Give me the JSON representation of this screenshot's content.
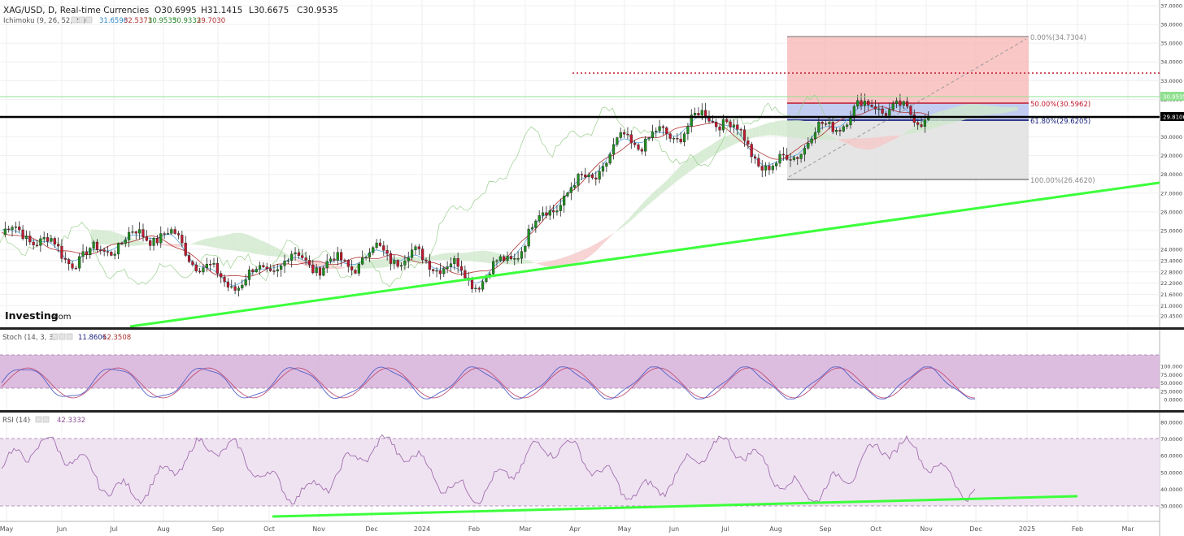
{
  "header": {
    "symbol_line": "XAG/USD, D, Real-time Currencies",
    "ohlc": {
      "open": "O30.6995",
      "high": "H31.1415",
      "low": "L30.6675",
      "close": "C30.9535"
    },
    "ichimoku_label": "Ichimoku (9, 26, 52, 26)",
    "ichimoku_values": [
      "31.6596",
      "32.5371",
      "30.9535",
      "30.9333",
      "29.7030"
    ],
    "ichimoku_value_colors": [
      "#2e86c1",
      "#b03030",
      "#2e8b2e",
      "#2e8b2e",
      "#b03030"
    ]
  },
  "logo": {
    "brand": "Investing",
    "suffix": ".com"
  },
  "price_panel": {
    "y_ticks": [
      "37.0000",
      "36.0000",
      "35.0000",
      "34.0000",
      "33.0000",
      "32.0000",
      "31.0000",
      "30.0000",
      "29.0000",
      "28.0000",
      "27.0000",
      "26.0000",
      "25.0000",
      "24.0000",
      "23.4000",
      "22.8000",
      "22.2000",
      "21.6000",
      "21.0000",
      "20.4500"
    ],
    "current_price": "30.9535",
    "hline_price": "29.8106",
    "fib": [
      {
        "label": "0.00%(34.7304)",
        "color": "#8a8a8a"
      },
      {
        "label": "50.00%(30.5962)",
        "color": "#c0182e"
      },
      {
        "label": "61.80%(29.6205)",
        "color": "#1a237e"
      },
      {
        "label": "100.00%(26.4620)",
        "color": "#8a8a8a"
      }
    ]
  },
  "stoch_panel": {
    "label": "Stoch (14, 3, 3)",
    "values": [
      "11.8606",
      "12.3508"
    ],
    "value_colors": [
      "#1a237e",
      "#b03030"
    ],
    "y_ticks": [
      "100.000",
      "75.0000",
      "50.0000",
      "25.0000",
      "0.0000"
    ]
  },
  "rsi_panel": {
    "label": "RSI (14)",
    "value": "42.3332",
    "y_ticks": [
      "80.0000",
      "70.0000",
      "60.0000",
      "50.0000",
      "40.0000",
      "30.0000"
    ]
  },
  "x_axis": {
    "labels": [
      "May",
      "Jun",
      "Jul",
      "Aug",
      "Sep",
      "Oct",
      "Nov",
      "Dec",
      "2024",
      "Feb",
      "Mar",
      "Apr",
      "May",
      "Jun",
      "Jul",
      "Aug",
      "Sep",
      "Oct",
      "Nov",
      "Dec",
      "2025",
      "Feb",
      "Mar"
    ]
  },
  "colors": {
    "bull": "#1f8f1f",
    "bear": "#c0182e",
    "trendline": "#3cff3c",
    "stoch_band": "#d8b6dc",
    "rsi_band": "#efe3f1"
  },
  "chart_data": {
    "type": "candlestick",
    "title": "XAG/USD, D, Real-time Currencies",
    "ylim": [
      20.2,
      37.4
    ],
    "approx_monthly_closes": {
      "x": [
        "May",
        "Jun",
        "Jul",
        "Aug",
        "Sep",
        "Oct",
        "Nov",
        "Dec",
        "2024",
        "Feb",
        "Mar",
        "Apr",
        "May",
        "Jun",
        "Jul",
        "Aug",
        "Sep",
        "Oct",
        "Nov"
      ],
      "values": [
        25.8,
        23.5,
        24.8,
        24.2,
        22.9,
        22.8,
        22.9,
        24.4,
        22.8,
        22.8,
        24.5,
        26.8,
        30.5,
        29.6,
        31.2,
        28.5,
        29.8,
        32.5,
        30.9
      ]
    },
    "trendlines": [
      {
        "panel": "price",
        "from": [
          "May",
          20.2
        ],
        "to": [
          "Mar",
          26.4
        ]
      },
      {
        "panel": "rsi",
        "from": [
          "Oct",
          28
        ],
        "to": [
          "Dec",
          36
        ]
      }
    ],
    "stoch_last": [
      11.8606,
      12.3508
    ],
    "rsi_last": 42.3332
  }
}
